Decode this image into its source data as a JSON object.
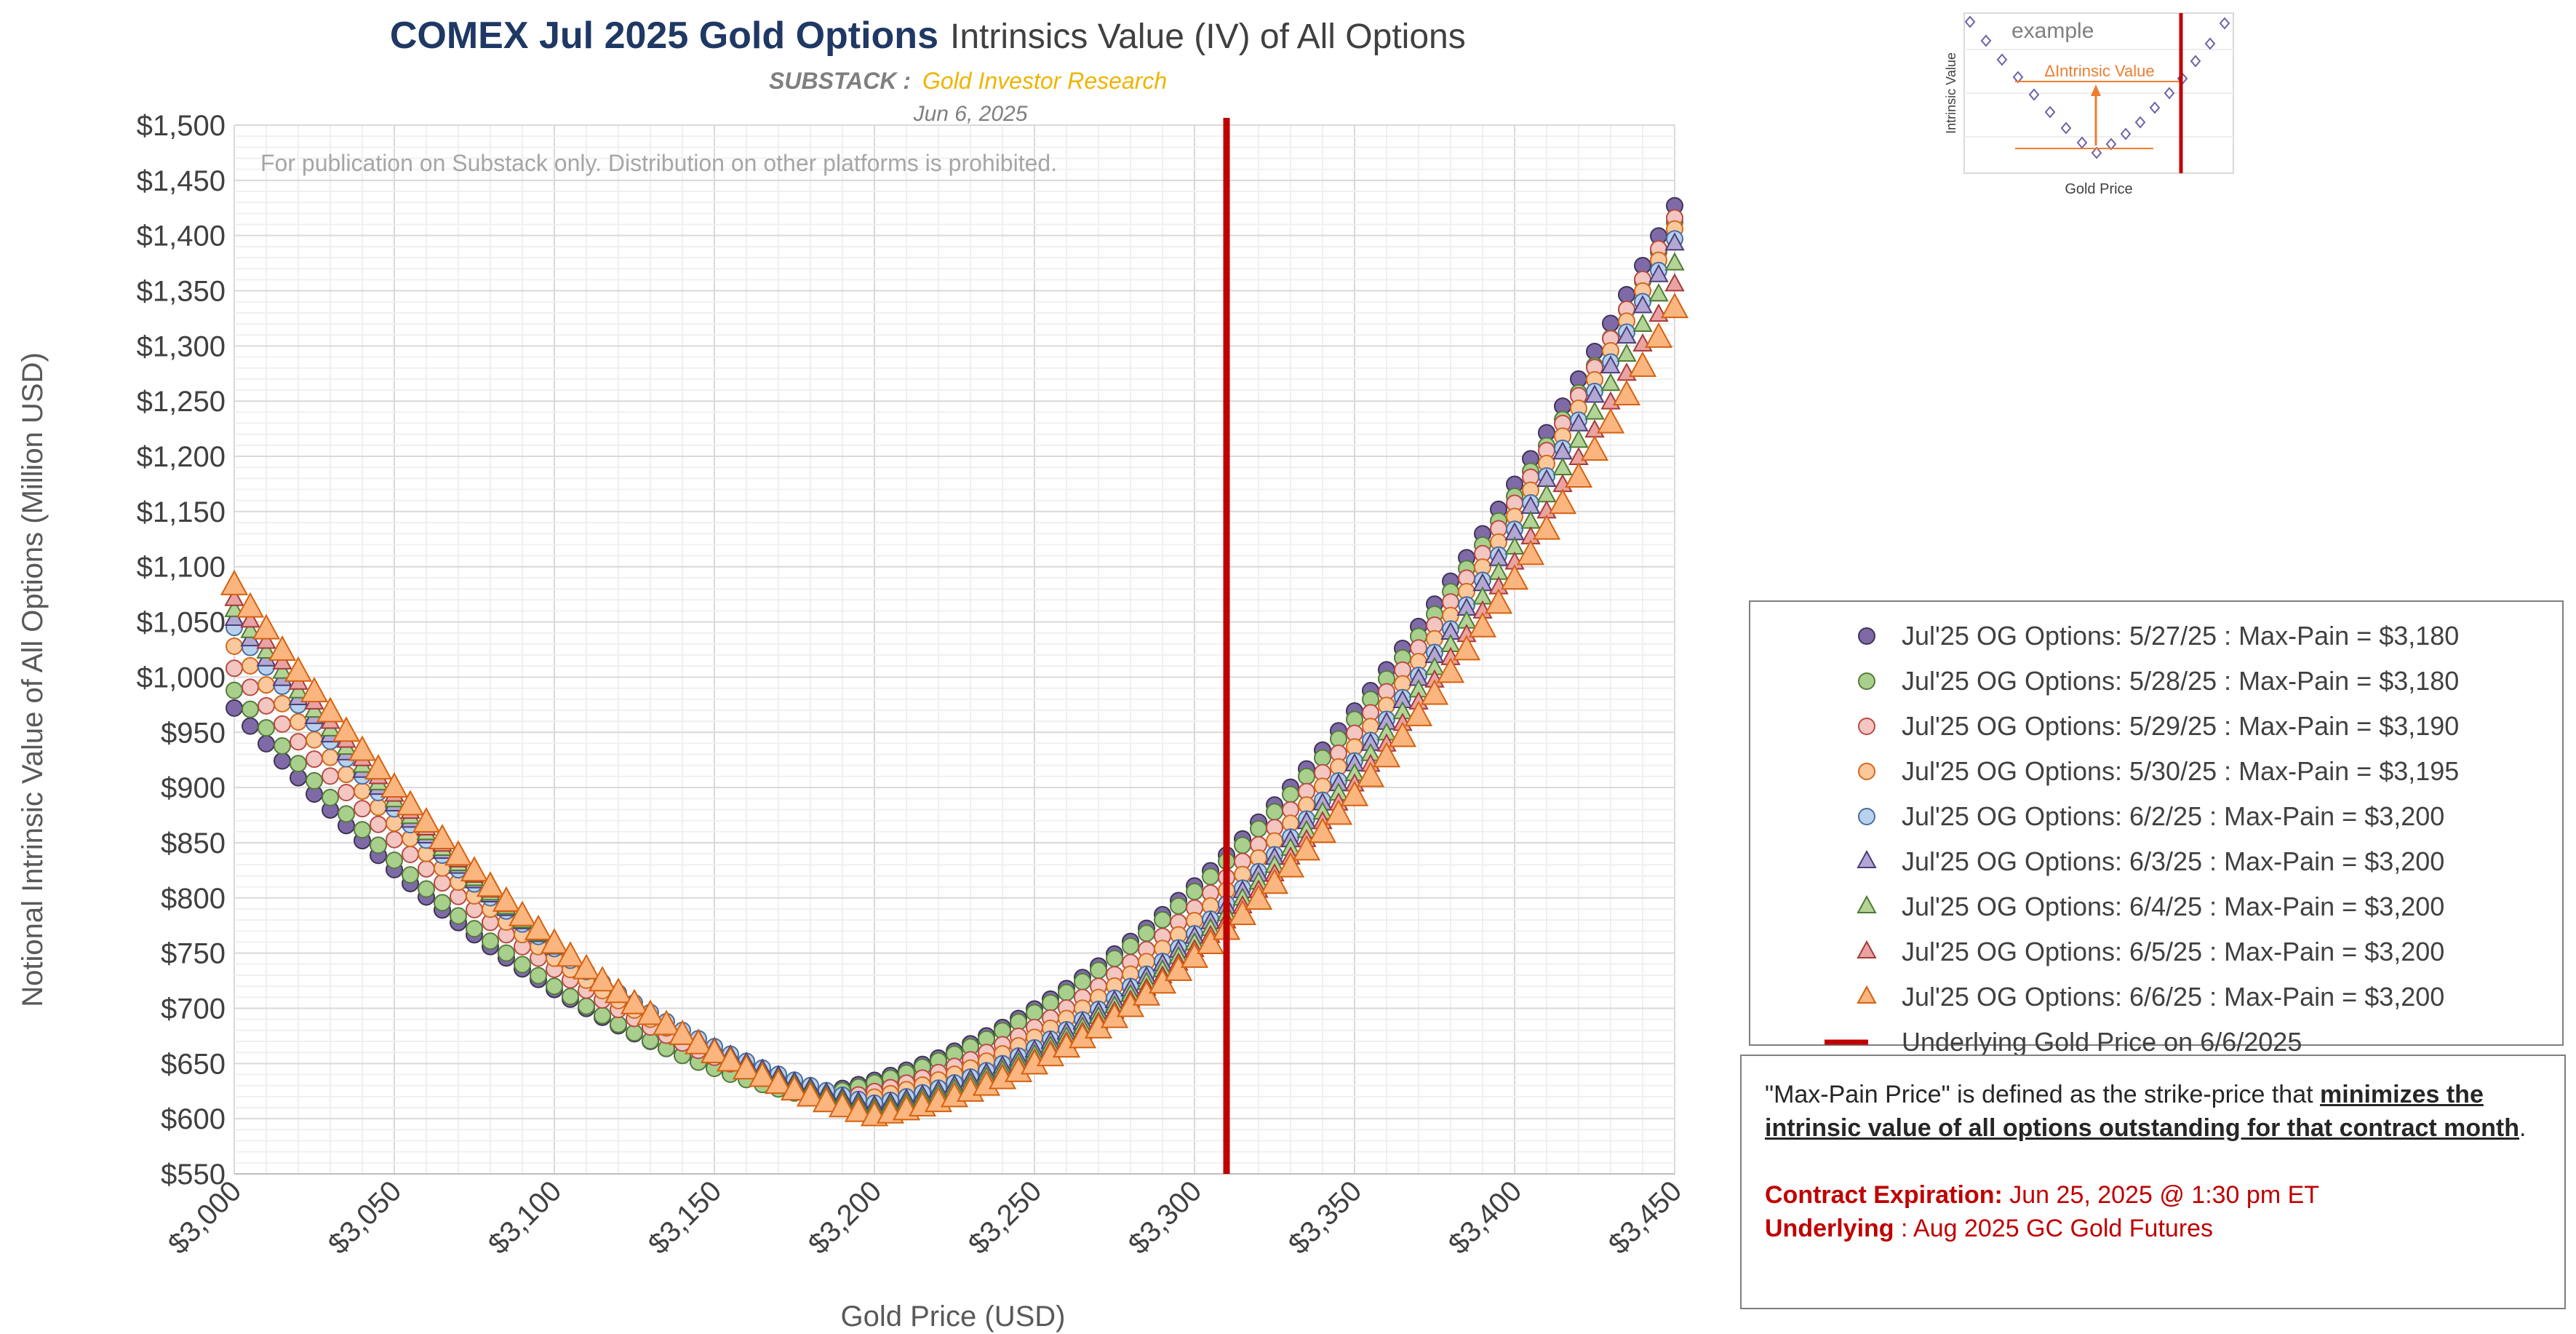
{
  "header": {
    "title_bold": "COMEX Jul 2025 Gold Options",
    "title_rest": "Intrinsics Value (IV) of All Options",
    "substack_label": "SUBSTACK :",
    "substack_name": "Gold Investor Research",
    "date": "Jun 6, 2025",
    "notice": "For publication on Substack only. Distribution on other platforms is prohibited."
  },
  "chart_data": {
    "type": "scatter",
    "xlabel": "Gold Price (USD)",
    "ylabel": "Notional Intrinsic Value of All Options (Million USD)",
    "xlim": [
      3000,
      3450
    ],
    "ylim": [
      550,
      1500
    ],
    "x_step": 5,
    "x_ticks": [
      "$3,000",
      "$3,050",
      "$3,100",
      "$3,150",
      "$3,200",
      "$3,250",
      "$3,300",
      "$3,350",
      "$3,400",
      "$3,450"
    ],
    "y_ticks": [
      "$550",
      "$600",
      "$650",
      "$700",
      "$750",
      "$800",
      "$850",
      "$900",
      "$950",
      "$1,000",
      "$1,050",
      "$1,100",
      "$1,150",
      "$1,200",
      "$1,250",
      "$1,300",
      "$1,350",
      "$1,400",
      "$1,450",
      "$1,500"
    ],
    "grid": true,
    "legend_position": "right",
    "series": [
      {
        "name": "Jul'25 OG Options: 5/27/25 : Max-Pain = $3,180",
        "marker": "circle",
        "color": "#7e6aa6",
        "edge": "#3f3356",
        "maxpain": 3180,
        "y_at_min": 622,
        "y_left": 972,
        "y_right": 1427
      },
      {
        "name": "Jul'25 OG Options: 5/28/25 : Max-Pain = $3,180",
        "marker": "circle",
        "color": "#a9cf8c",
        "edge": "#557a3c",
        "maxpain": 3180,
        "y_at_min": 620,
        "y_left": 988,
        "y_right": 1412
      },
      {
        "name": "Jul'25 OG Options: 5/29/25 : Max-Pain = $3,190",
        "marker": "circle",
        "color": "#f3c6c2",
        "edge": "#b84b43",
        "maxpain": 3190,
        "y_at_min": 619,
        "y_left": 1008,
        "y_right": 1416
      },
      {
        "name": "Jul'25 OG Options: 5/30/25 : Max-Pain = $3,195",
        "marker": "circle",
        "color": "#fbc89c",
        "edge": "#d2691e",
        "maxpain": 3195,
        "y_at_min": 617,
        "y_left": 1028,
        "y_right": 1406
      },
      {
        "name": "Jul'25 OG Options: 6/2/25 : Max-Pain = $3,200",
        "marker": "circle",
        "color": "#b7d1ef",
        "edge": "#4a6e9c",
        "maxpain": 3200,
        "y_at_min": 614,
        "y_left": 1045,
        "y_right": 1397
      },
      {
        "name": "Jul'25 OG Options: 6/3/25 : Max-Pain = $3,200",
        "marker": "triangle",
        "color": "#b3a7d3",
        "edge": "#4b3e78",
        "maxpain": 3200,
        "y_at_min": 611,
        "y_left": 1052,
        "y_right": 1392
      },
      {
        "name": "Jul'25 OG Options: 6/4/25 : Max-Pain = $3,200",
        "marker": "triangle",
        "color": "#b3d496",
        "edge": "#4f7a34",
        "maxpain": 3200,
        "y_at_min": 608,
        "y_left": 1060,
        "y_right": 1374
      },
      {
        "name": "Jul'25 OG Options: 6/5/25 : Max-Pain = $3,200",
        "marker": "triangle",
        "color": "#e9a3a3",
        "edge": "#a63a3a",
        "maxpain": 3200,
        "y_at_min": 605,
        "y_left": 1070,
        "y_right": 1355
      },
      {
        "name": "Jul'25 OG Options: 6/6/25 : Max-Pain = $3,200",
        "marker": "triangle",
        "color": "#fbb57f",
        "edge": "#d5610f",
        "maxpain": 3200,
        "y_at_min": 601,
        "y_left": 1082,
        "y_right": 1333
      }
    ],
    "underlying": {
      "name": "Underlying Gold Price on 6/6/2025",
      "x": 3310,
      "color": "#c00000"
    }
  },
  "inset": {
    "label": "example",
    "annotation": "ΔIntrinsic Value",
    "xlabel": "Gold Price",
    "ylabel": "Intrinsic Value"
  },
  "note": {
    "line1_pre": "\"Max-Pain Price\" is defined as the strike-price that",
    "line1_bold": "minimizes the intrinsic value of all options outstanding for that contract month",
    "line1_post": ".",
    "expiry_label": "Contract Expiration:",
    "expiry_value": "Jun 25, 2025 @ 1:30 pm ET",
    "underlying_label": "Underlying",
    "underlying_value": ": Aug 2025 GC Gold Futures"
  },
  "colors": {
    "title_blue": "#1f3864",
    "substack_gold": "#f0b400",
    "underlying_red": "#c00000"
  }
}
